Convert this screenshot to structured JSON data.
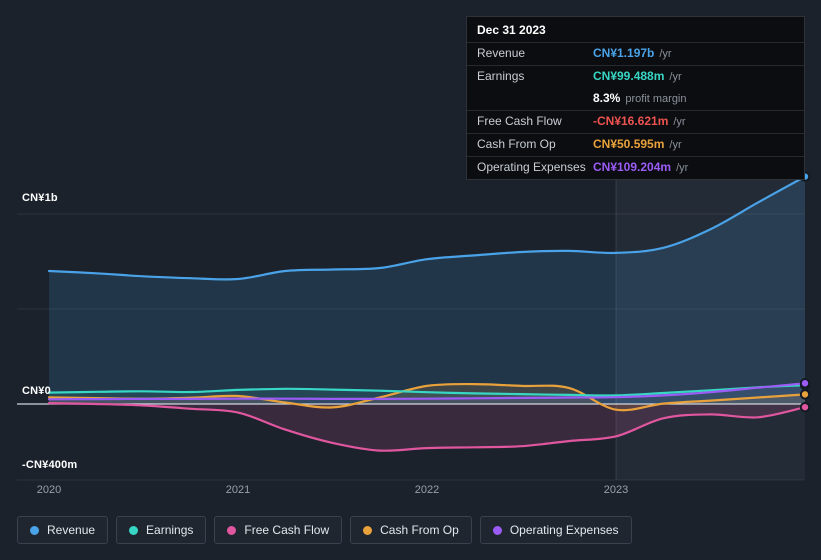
{
  "tooltip": {
    "date": "Dec 31 2023",
    "rows": [
      {
        "label": "Revenue",
        "value": "CN¥1.197b",
        "suffix": "/yr",
        "color": "#4aa3e8"
      },
      {
        "label": "Earnings",
        "value": "CN¥99.488m",
        "suffix": "/yr",
        "color": "#38d6c4"
      },
      {
        "label": "",
        "value": "8.3%",
        "suffix": "profit margin",
        "color": "#ffffff"
      },
      {
        "label": "Free Cash Flow",
        "value": "-CN¥16.621m",
        "suffix": "/yr",
        "color": "#ef5350"
      },
      {
        "label": "Cash From Op",
        "value": "CN¥50.595m",
        "suffix": "/yr",
        "color": "#e9a23b"
      },
      {
        "label": "Operating Expenses",
        "value": "CN¥109.204m",
        "suffix": "/yr",
        "color": "#9b5cf6"
      }
    ]
  },
  "axis": {
    "y_labels": [
      {
        "text": "CN¥1b",
        "value": 1000
      },
      {
        "text": "CN¥0",
        "value": 0
      },
      {
        "text": "-CN¥400m",
        "value": -400
      }
    ],
    "x_labels": [
      "2020",
      "2021",
      "2022",
      "2023"
    ]
  },
  "legend": {
    "items": [
      {
        "label": "Revenue",
        "color": "#4aa3e8"
      },
      {
        "label": "Earnings",
        "color": "#38d6c4"
      },
      {
        "label": "Free Cash Flow",
        "color": "#e0569f"
      },
      {
        "label": "Cash From Op",
        "color": "#e9a23b"
      },
      {
        "label": "Operating Expenses",
        "color": "#9b5cf6"
      }
    ]
  },
  "chart_data": {
    "type": "line",
    "title": "",
    "x_unit": "year",
    "currency": "CN¥",
    "value_unit": "millions",
    "x": [
      2020,
      2020.25,
      2020.5,
      2020.75,
      2021,
      2021.25,
      2021.5,
      2021.75,
      2022,
      2022.25,
      2022.5,
      2022.75,
      2023,
      2023.25,
      2023.5,
      2023.75,
      2024
    ],
    "x_ticks": [
      2020,
      2021,
      2022,
      2023
    ],
    "ylim": [
      -400,
      1450
    ],
    "y_gridlines": [
      1000,
      500,
      0,
      -400
    ],
    "highlight_from_x": 2023,
    "legend_position": "bottom",
    "series": [
      {
        "name": "Revenue",
        "color": "#4aa3e8",
        "fill": "rgba(74,163,232,0.16)",
        "values": [
          700,
          688,
          672,
          662,
          658,
          700,
          708,
          716,
          762,
          782,
          800,
          806,
          795,
          822,
          920,
          1060,
          1197
        ]
      },
      {
        "name": "Free Cash Flow",
        "color": "#e0569f",
        "fill": "rgba(224,86,159,0.16)",
        "values": [
          5,
          0,
          -8,
          -25,
          -45,
          -135,
          -205,
          -245,
          -232,
          -228,
          -222,
          -195,
          -170,
          -75,
          -55,
          -70,
          -16.621
        ]
      },
      {
        "name": "Cash From Op",
        "color": "#e9a23b",
        "fill": "rgba(233,162,59,0.15)",
        "values": [
          35,
          31,
          28,
          33,
          42,
          8,
          -18,
          35,
          95,
          105,
          95,
          85,
          -30,
          2,
          18,
          34,
          50.595
        ]
      },
      {
        "name": "Earnings",
        "color": "#38d6c4",
        "fill": "rgba(56,214,196,0.10)",
        "values": [
          60,
          64,
          67,
          63,
          74,
          80,
          76,
          70,
          62,
          56,
          52,
          48,
          45,
          58,
          72,
          88,
          99.488
        ]
      },
      {
        "name": "Operating Expenses",
        "color": "#9b5cf6",
        "fill": "rgba(155,92,246,0.10)",
        "values": [
          25,
          26,
          27,
          27,
          28,
          28,
          27,
          27,
          28,
          30,
          32,
          34,
          36,
          45,
          62,
          86,
          109.204
        ]
      }
    ]
  }
}
